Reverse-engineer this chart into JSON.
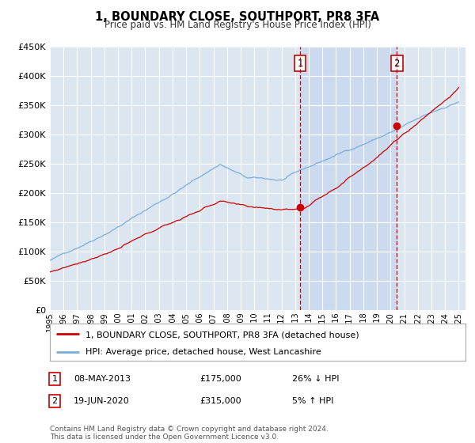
{
  "title": "1, BOUNDARY CLOSE, SOUTHPORT, PR8 3FA",
  "subtitle": "Price paid vs. HM Land Registry's House Price Index (HPI)",
  "footer": "Contains HM Land Registry data © Crown copyright and database right 2024.\nThis data is licensed under the Open Government Licence v3.0.",
  "legend_line1": "1, BOUNDARY CLOSE, SOUTHPORT, PR8 3FA (detached house)",
  "legend_line2": "HPI: Average price, detached house, West Lancashire",
  "transaction1_label": "1",
  "transaction1_date": "08-MAY-2013",
  "transaction1_price": "£175,000",
  "transaction1_hpi": "26% ↓ HPI",
  "transaction2_label": "2",
  "transaction2_date": "19-JUN-2020",
  "transaction2_price": "£315,000",
  "transaction2_hpi": "5% ↑ HPI",
  "ylim": [
    0,
    450000
  ],
  "yticks": [
    0,
    50000,
    100000,
    150000,
    200000,
    250000,
    300000,
    350000,
    400000,
    450000
  ],
  "ytick_labels": [
    "£0",
    "£50K",
    "£100K",
    "£150K",
    "£200K",
    "£250K",
    "£300K",
    "£350K",
    "£400K",
    "£450K"
  ],
  "bg_color": "#ffffff",
  "plot_bg_color": "#dce6f1",
  "shade_color": "#c8d8ef",
  "grid_color": "#ffffff",
  "hpi_color": "#7aaddc",
  "price_color": "#cc0000",
  "vline_color": "#cc0000",
  "transaction1_x": 2013.36,
  "transaction1_y": 175000,
  "transaction2_x": 2020.46,
  "transaction2_y": 315000,
  "xmin": 1995,
  "xmax": 2025.5
}
